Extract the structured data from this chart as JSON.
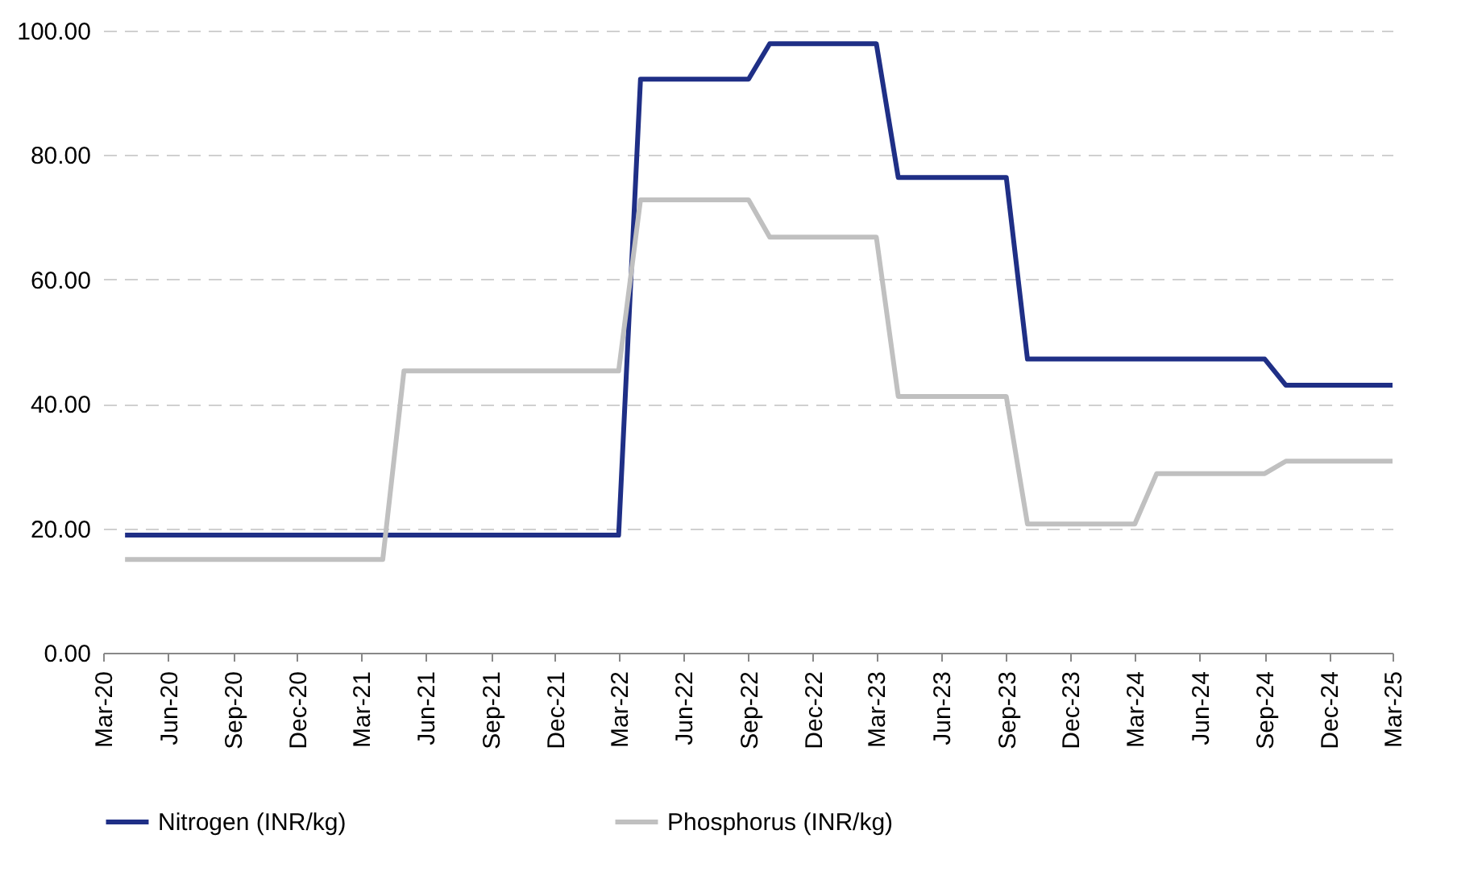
{
  "chart_data": {
    "type": "line",
    "xlim": [
      "2020-03",
      "2025-03"
    ],
    "xticks": [
      {
        "value": "2020-03",
        "label": "Mar-20"
      },
      {
        "value": "2020-06",
        "label": "Jun-20"
      },
      {
        "value": "2020-09",
        "label": "Sep-20"
      },
      {
        "value": "2020-12",
        "label": "Dec-20"
      },
      {
        "value": "2021-03",
        "label": "Mar-21"
      },
      {
        "value": "2021-06",
        "label": "Jun-21"
      },
      {
        "value": "2021-09",
        "label": "Sep-21"
      },
      {
        "value": "2021-12",
        "label": "Dec-21"
      },
      {
        "value": "2022-03",
        "label": "Mar-22"
      },
      {
        "value": "2022-06",
        "label": "Jun-22"
      },
      {
        "value": "2022-09",
        "label": "Sep-22"
      },
      {
        "value": "2022-12",
        "label": "Dec-22"
      },
      {
        "value": "2023-03",
        "label": "Mar-23"
      },
      {
        "value": "2023-06",
        "label": "Jun-23"
      },
      {
        "value": "2023-09",
        "label": "Sep-23"
      },
      {
        "value": "2023-12",
        "label": "Dec-23"
      },
      {
        "value": "2024-03",
        "label": "Mar-24"
      },
      {
        "value": "2024-06",
        "label": "Jun-24"
      },
      {
        "value": "2024-09",
        "label": "Sep-24"
      },
      {
        "value": "2024-12",
        "label": "Dec-24"
      },
      {
        "value": "2025-03",
        "label": "Mar-25"
      }
    ],
    "ylim": [
      0,
      100
    ],
    "yticks": [
      {
        "value": 0,
        "label": "0.00"
      },
      {
        "value": 20,
        "label": "20.00"
      },
      {
        "value": 40,
        "label": "40.00"
      },
      {
        "value": 60,
        "label": "60.00"
      },
      {
        "value": 80,
        "label": "80.00"
      },
      {
        "value": 100,
        "label": "100.00"
      }
    ],
    "grid": "y",
    "legend": "bottom",
    "marker": "none",
    "line_style": "solid",
    "series": [
      {
        "name": "Nitrogen (INR/kg)",
        "color": "#1f2f86",
        "x": [
          "2020-04",
          "2022-03",
          "2022-04",
          "2022-09",
          "2022-10",
          "2023-03",
          "2023-04",
          "2023-09",
          "2023-10",
          "2024-09",
          "2024-10",
          "2025-03"
        ],
        "values": [
          18.9,
          18.9,
          92.2,
          92.2,
          97.9,
          97.9,
          76.4,
          76.4,
          47.2,
          47.2,
          43,
          43
        ]
      },
      {
        "name": "Phosphorus (INR/kg)",
        "color": "#c0c0c0",
        "x": [
          "2020-04",
          "2021-04",
          "2021-05",
          "2022-03",
          "2022-04",
          "2022-09",
          "2022-10",
          "2023-03",
          "2023-04",
          "2023-09",
          "2023-10",
          "2024-03",
          "2024-04",
          "2024-09",
          "2024-10",
          "2025-03"
        ],
        "values": [
          15,
          15,
          45.3,
          45.3,
          72.8,
          72.8,
          66.8,
          66.8,
          41.2,
          41.2,
          20.7,
          20.7,
          28.8,
          28.8,
          30.8,
          30.8
        ]
      }
    ]
  }
}
